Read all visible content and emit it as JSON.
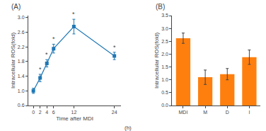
{
  "chart_data": [
    {
      "type": "line",
      "title": "(A)",
      "x": [
        0,
        2,
        4,
        6,
        12,
        24
      ],
      "values": [
        1.0,
        1.35,
        1.75,
        2.15,
        2.75,
        1.95
      ],
      "yerr": [
        0.07,
        0.1,
        0.1,
        0.12,
        0.2,
        0.1
      ],
      "xlabel": "Time after MDI",
      "ylabel": "Intracellular ROS(fold)",
      "xlim": [
        -1.5,
        26
      ],
      "ylim": [
        0.6,
        3.05
      ],
      "xticks": [
        0,
        2,
        4,
        6,
        12,
        24
      ],
      "yticks": [
        0.6,
        {
          "value": 1.0,
          "label": "1.0"
        },
        1.4,
        1.8,
        2.2,
        2.6,
        {
          "value": 3.0,
          "label": "3.0"
        }
      ],
      "marker": "square",
      "line_style": "solid",
      "grid": false,
      "annotations": [
        {
          "x": 2,
          "text": "*"
        },
        {
          "x": 4,
          "text": "*"
        },
        {
          "x": 6,
          "text": "*"
        },
        {
          "x": 12,
          "text": "*"
        },
        {
          "x": 24,
          "text": "*"
        },
        {
          "text": "(h)"
        }
      ]
    },
    {
      "type": "bar",
      "title": "(B)",
      "categories": [
        "MDI",
        "M",
        "D",
        "I"
      ],
      "values": [
        2.62,
        1.1,
        1.22,
        1.88
      ],
      "yerr": [
        0.2,
        0.28,
        0.22,
        0.28
      ],
      "ylabel": "Intracellular ROS(fold)",
      "ylim": [
        0.0,
        3.5
      ],
      "yticks": [
        {
          "value": 0.0,
          "label": "0.0"
        },
        0.5,
        {
          "value": 1.0,
          "label": "1.0"
        },
        1.5,
        {
          "value": 2.0,
          "label": "2.0"
        },
        2.5,
        {
          "value": 3.0,
          "label": "3.0"
        },
        3.5
      ],
      "grid": false
    }
  ]
}
